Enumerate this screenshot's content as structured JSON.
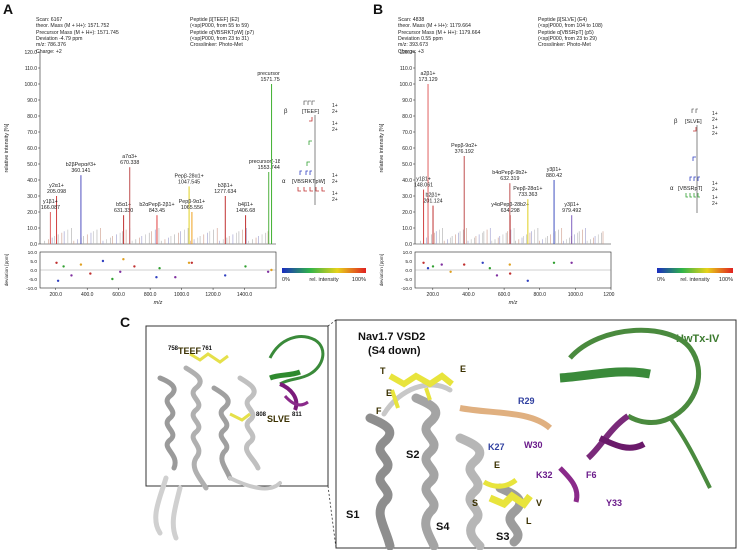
{
  "panels": {
    "A": {
      "letter": "A",
      "header_left": [
        "Scan: 6167",
        "theor. Mass (M + H+): 1571.752",
        "Precursor Mass (M + H+): 1571.745",
        "Deviation -4.79 ppm",
        "m/z: 786.376",
        "Charge: +2"
      ],
      "header_right": [
        "Peptide β[TEEF] (E2)",
        "(<sp|P000, from 55 to 59)",
        "Peptide α[VBSRKTpW] (p7)",
        "(<sp|P000, from 23 to 31)",
        "Crosslinker: Photo-Met"
      ],
      "seq_beta": "[TEEF]",
      "seq_alpha": "[VBSRKTpW]"
    },
    "B": {
      "letter": "B",
      "header_left": [
        "Scan: 4838",
        "theor. Mass (M + H+): 1179.664",
        "Precursor Mass (M + H+): 1179.664",
        "Deviation 0.55 ppm",
        "m/z: 393.673",
        "Charge: +3"
      ],
      "header_right": [
        "Peptide β[SLVE] (E4)",
        "(<sp|P000, from 104 to 108)",
        "Peptide α[VBSRpT] (p5)",
        "(<sp|P000, from 23 to 29)",
        "Crosslinker: Photo-Met"
      ],
      "seq_beta": "[SLVE]",
      "seq_alpha": "[VBSRpT]"
    },
    "C": {
      "letter": "C",
      "label_teef": "TEEF",
      "label_teef_sup_start": "758",
      "label_teef_sup_end": "761",
      "label_slve": "SLVE",
      "label_slve_sup_start": "808",
      "label_slve_sup_end": "811",
      "title_line1": "Nav1.7 VSD2",
      "title_line2": "(S4 down)",
      "toxin": "HwTx-IV",
      "residues_yellow": [
        "T",
        "E",
        "E",
        "F",
        "E",
        "S",
        "V",
        "L"
      ],
      "residues_blue": [
        "R29",
        "K27"
      ],
      "residues_purple": [
        "W30",
        "K32",
        "F6",
        "Y33"
      ],
      "helices": [
        "S1",
        "S2",
        "S3",
        "S4"
      ]
    }
  },
  "colorbar": {
    "left": "0%",
    "mid": "rel. intensity",
    "right": "100%"
  },
  "chart_data": [
    {
      "type": "bar",
      "panel": "A",
      "title": "",
      "xlabel": "m/z",
      "ylabel": "relative intensity [%]",
      "xlim": [
        100,
        1600
      ],
      "ylim": [
        0,
        120
      ],
      "xticks": [
        200,
        400,
        600,
        800,
        1000,
        1200,
        1400
      ],
      "yticks": [
        0,
        10,
        20,
        30,
        40,
        50,
        60,
        70,
        80,
        90,
        100,
        110,
        120
      ],
      "peaks": [
        {
          "x": 205.098,
          "y": 30,
          "color": "#d04040",
          "label": "y2α1+",
          "value": "205.098"
        },
        {
          "x": 166.087,
          "y": 20,
          "color": "#e06060",
          "label": "y1β1+",
          "value": "166.087"
        },
        {
          "x": 360.141,
          "y": 43,
          "color": "#5050c0",
          "label": "b2βPepα#3+",
          "value": "360.141"
        },
        {
          "x": 631.33,
          "y": 18,
          "color": "#c03030",
          "label": "b5α1+",
          "value": "631.330"
        },
        {
          "x": 670.338,
          "y": 48,
          "color": "#c05050",
          "label": "a7α3+",
          "value": "670.338"
        },
        {
          "x": 843.45,
          "y": 18,
          "color": "#e04040",
          "label": "b2αPepβ-2β1+",
          "value": "843.45"
        },
        {
          "x": 1047.545,
          "y": 36,
          "color": "#e0d020",
          "label": "Pepβ-28α1+",
          "value": "1047.545"
        },
        {
          "x": 1065.556,
          "y": 20,
          "color": "#f0a020",
          "label": "Pepβ-9α1+",
          "value": "1065.556"
        },
        {
          "x": 1277.634,
          "y": 30,
          "color": "#c03030",
          "label": "b3β1+",
          "value": "1277.634"
        },
        {
          "x": 1406.68,
          "y": 18,
          "color": "#c03030",
          "label": "b4β1+",
          "value": "1406.68"
        },
        {
          "x": 1553.744,
          "y": 45,
          "color": "#50b040",
          "label": "precursor(-18)2+",
          "value": "1553.744"
        },
        {
          "x": 1571.756,
          "y": 100,
          "color": "#40b030",
          "label": "precursor1+",
          "value": "1571.756"
        }
      ],
      "deviation": {
        "ylabel": "deviation [ppm]",
        "ylim": [
          -10,
          10
        ],
        "yticks": [
          -10,
          -5,
          0,
          5,
          10
        ],
        "points": [
          [
            205,
            4
          ],
          [
            215,
            -6
          ],
          [
            250,
            2
          ],
          [
            300,
            -3
          ],
          [
            360,
            3
          ],
          [
            420,
            -2
          ],
          [
            500,
            5
          ],
          [
            560,
            -5
          ],
          [
            610,
            -1
          ],
          [
            630,
            6
          ],
          [
            700,
            2
          ],
          [
            840,
            -4
          ],
          [
            860,
            1
          ],
          [
            960,
            -4
          ],
          [
            1047,
            4
          ],
          [
            1065,
            4
          ],
          [
            1277,
            -3
          ],
          [
            1406,
            2
          ],
          [
            1550,
            -1
          ],
          [
            1571,
            0
          ]
        ]
      }
    },
    {
      "type": "bar",
      "panel": "B",
      "title": "",
      "xlabel": "m/z",
      "ylabel": "relative intensity [%]",
      "xlim": [
        100,
        1200
      ],
      "ylim": [
        0,
        120
      ],
      "xticks": [
        200,
        400,
        600,
        800,
        1000,
        1200
      ],
      "yticks": [
        0,
        10,
        20,
        30,
        40,
        50,
        60,
        70,
        80,
        90,
        100,
        110,
        120
      ],
      "peaks": [
        {
          "x": 173.129,
          "y": 100,
          "color": "#e06060",
          "label": "a2β1+",
          "value": "173.129"
        },
        {
          "x": 148.061,
          "y": 34,
          "color": "#d04040",
          "label": "y1β1+",
          "value": "148.061"
        },
        {
          "x": 201.124,
          "y": 24,
          "color": "#c03030",
          "label": "b2β1+",
          "value": "201.124"
        },
        {
          "x": 376.192,
          "y": 55,
          "color": "#c05050",
          "label": "Pepβ-9α2+",
          "value": "376.192"
        },
        {
          "x": 632.319,
          "y": 38,
          "color": "#c05050",
          "label": "b4αPepβ-9b2+",
          "value": "632.319"
        },
        {
          "x": 634.298,
          "y": 18,
          "color": "#c05050",
          "label": "y4αPepβ-28b2+",
          "value": "634.298"
        },
        {
          "x": 733.363,
          "y": 28,
          "color": "#e0d020",
          "label": "Pepβ-28α1+",
          "value": "733.363"
        },
        {
          "x": 880.42,
          "y": 40,
          "color": "#4050c0",
          "label": "y3β1+",
          "value": "880.42"
        },
        {
          "x": 979.492,
          "y": 18,
          "color": "#8060c0",
          "label": "y3β1+",
          "value": "979.492"
        }
      ],
      "deviation": {
        "ylabel": "deviation [ppm]",
        "ylim": [
          -10,
          10
        ],
        "yticks": [
          -10,
          -5,
          0,
          5,
          10
        ],
        "points": [
          [
            148,
            4
          ],
          [
            173,
            1
          ],
          [
            201,
            2
          ],
          [
            250,
            3
          ],
          [
            300,
            -1
          ],
          [
            376,
            3
          ],
          [
            480,
            4
          ],
          [
            520,
            1
          ],
          [
            560,
            -3
          ],
          [
            632,
            3
          ],
          [
            634,
            -2
          ],
          [
            733,
            -6
          ],
          [
            880,
            4
          ],
          [
            979,
            4
          ]
        ]
      }
    }
  ]
}
